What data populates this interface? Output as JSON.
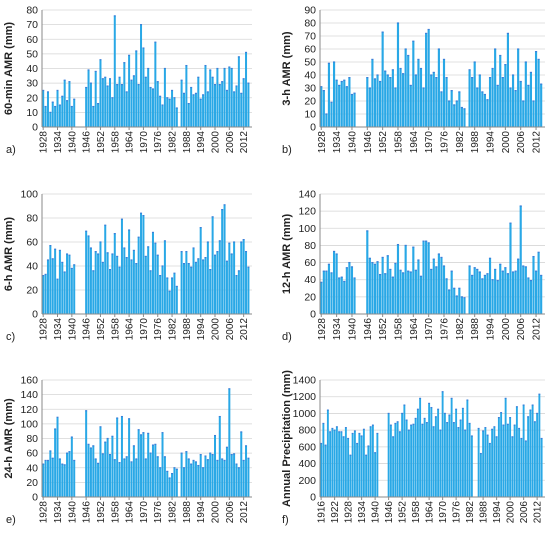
{
  "style": {
    "bar_color": "#29A8E6",
    "bar_edge_color": "#3B7FD9",
    "grid_color": "#d6d6d6",
    "axis_color": "#8a8a8a"
  },
  "chart_data": [
    {
      "panel": "a)",
      "type": "bar",
      "ylabel": "60-min AMR (mm)",
      "ylim": [
        0,
        80
      ],
      "yticks": [
        0,
        10,
        20,
        30,
        40,
        50,
        60,
        70,
        80
      ],
      "grid": true,
      "xrange": [
        1928,
        2015
      ],
      "xtick_labels": [
        "1928",
        "1934",
        "1940",
        "1946",
        "1952",
        "1958",
        "1964",
        "1970",
        "1976",
        "1982",
        "1988",
        "1994",
        "2000",
        "2006",
        "2012"
      ],
      "years": [
        1928,
        1929,
        1930,
        1931,
        1932,
        1933,
        1934,
        1935,
        1936,
        1937,
        1938,
        1939,
        1940,
        1941,
        1946,
        1947,
        1948,
        1949,
        1950,
        1951,
        1952,
        1953,
        1954,
        1955,
        1956,
        1957,
        1958,
        1959,
        1960,
        1961,
        1962,
        1963,
        1964,
        1965,
        1966,
        1967,
        1968,
        1969,
        1970,
        1971,
        1972,
        1973,
        1974,
        1975,
        1976,
        1977,
        1978,
        1979,
        1980,
        1981,
        1982,
        1983,
        1984,
        1986,
        1987,
        1988,
        1989,
        1990,
        1991,
        1992,
        1993,
        1994,
        1995,
        1996,
        1997,
        1998,
        1999,
        2000,
        2001,
        2002,
        2003,
        2004,
        2005,
        2006,
        2007,
        2008,
        2009,
        2010,
        2011,
        2012,
        2013,
        2014
      ],
      "values": [
        25,
        14,
        24,
        10,
        17,
        14,
        25,
        15,
        21,
        32,
        18,
        31,
        14,
        19,
        27,
        39,
        30,
        14,
        38,
        16,
        46,
        33,
        34,
        28,
        33,
        20,
        76,
        29,
        34,
        29,
        44,
        24,
        49,
        32,
        35,
        52,
        29,
        70,
        54,
        34,
        40,
        27,
        26,
        58,
        31,
        21,
        15,
        40,
        20,
        19,
        25,
        20,
        13,
        32,
        23,
        42,
        16,
        27,
        22,
        23,
        34,
        19,
        22,
        42,
        24,
        39,
        34,
        29,
        40,
        29,
        31,
        40,
        25,
        41,
        40,
        24,
        28,
        48,
        23,
        33,
        51,
        30
      ]
    },
    {
      "panel": "b)",
      "type": "bar",
      "ylabel": "3-h AMR (mm)",
      "ylim": [
        0,
        90
      ],
      "yticks": [
        0,
        10,
        20,
        30,
        40,
        50,
        60,
        70,
        80,
        90
      ],
      "grid": true,
      "xrange": [
        1928,
        2015
      ],
      "xtick_labels": [
        "1928",
        "1934",
        "1940",
        "1946",
        "1952",
        "1958",
        "1964",
        "1970",
        "1976",
        "1982",
        "1988",
        "1994",
        "2000",
        "2006",
        "2012"
      ],
      "years": [
        1928,
        1929,
        1930,
        1931,
        1932,
        1933,
        1934,
        1935,
        1936,
        1937,
        1938,
        1939,
        1940,
        1941,
        1946,
        1947,
        1948,
        1949,
        1950,
        1951,
        1952,
        1953,
        1954,
        1955,
        1956,
        1957,
        1958,
        1959,
        1960,
        1961,
        1962,
        1963,
        1964,
        1965,
        1966,
        1967,
        1968,
        1969,
        1970,
        1971,
        1972,
        1973,
        1974,
        1975,
        1976,
        1977,
        1978,
        1979,
        1980,
        1981,
        1982,
        1983,
        1984,
        1986,
        1987,
        1988,
        1989,
        1990,
        1991,
        1992,
        1993,
        1994,
        1995,
        1996,
        1997,
        1998,
        1999,
        2000,
        2001,
        2002,
        2003,
        2004,
        2005,
        2006,
        2007,
        2008,
        2009,
        2010,
        2011,
        2012,
        2013,
        2014
      ],
      "values": [
        31,
        28,
        10,
        49,
        19,
        50,
        36,
        32,
        35,
        36,
        31,
        38,
        25,
        26,
        38,
        30,
        52,
        37,
        40,
        35,
        73,
        43,
        40,
        38,
        44,
        30,
        80,
        45,
        41,
        60,
        55,
        32,
        66,
        40,
        52,
        45,
        30,
        72,
        75,
        40,
        42,
        38,
        60,
        27,
        52,
        38,
        20,
        28,
        17,
        20,
        27,
        15,
        14,
        44,
        38,
        50,
        30,
        40,
        27,
        25,
        21,
        38,
        45,
        60,
        32,
        55,
        38,
        48,
        72,
        30,
        40,
        28,
        60,
        35,
        20,
        50,
        32,
        42,
        20,
        58,
        52,
        33
      ]
    },
    {
      "panel": "c)",
      "type": "bar",
      "ylabel": "6-h AMR (mm)",
      "ylim": [
        0,
        100
      ],
      "yticks": [
        0,
        20,
        40,
        60,
        80,
        100
      ],
      "grid": true,
      "xrange": [
        1928,
        2015
      ],
      "xtick_labels": [
        "1928",
        "1934",
        "1940",
        "1946",
        "1952",
        "1958",
        "1964",
        "1970",
        "1976",
        "1982",
        "1988",
        "1994",
        "2000",
        "2006",
        "2012"
      ],
      "years": [
        1928,
        1929,
        1930,
        1931,
        1932,
        1933,
        1934,
        1935,
        1936,
        1937,
        1938,
        1939,
        1940,
        1941,
        1946,
        1947,
        1948,
        1949,
        1950,
        1951,
        1952,
        1953,
        1954,
        1955,
        1956,
        1957,
        1958,
        1959,
        1960,
        1961,
        1962,
        1963,
        1964,
        1965,
        1966,
        1967,
        1968,
        1969,
        1970,
        1971,
        1972,
        1973,
        1974,
        1975,
        1976,
        1977,
        1978,
        1979,
        1980,
        1981,
        1982,
        1983,
        1984,
        1986,
        1987,
        1988,
        1989,
        1990,
        1991,
        1992,
        1993,
        1994,
        1995,
        1996,
        1997,
        1998,
        1999,
        2000,
        2001,
        2002,
        2003,
        2004,
        2005,
        2006,
        2007,
        2008,
        2009,
        2010,
        2011,
        2012,
        2013,
        2014
      ],
      "values": [
        32,
        33,
        45,
        57,
        46,
        54,
        29,
        53,
        43,
        35,
        50,
        49,
        38,
        41,
        69,
        65,
        55,
        36,
        52,
        50,
        60,
        43,
        74,
        51,
        37,
        50,
        67,
        48,
        39,
        79,
        55,
        47,
        70,
        45,
        53,
        42,
        64,
        84,
        82,
        48,
        56,
        36,
        68,
        59,
        49,
        32,
        40,
        61,
        30,
        19,
        30,
        34,
        23,
        52,
        42,
        52,
        42,
        39,
        55,
        43,
        46,
        72,
        45,
        47,
        60,
        37,
        81,
        49,
        52,
        61,
        87,
        91,
        44,
        59,
        50,
        60,
        32,
        36,
        60,
        62,
        52,
        39
      ]
    },
    {
      "panel": "d)",
      "type": "bar",
      "ylabel": "12-h AMR (mm)",
      "ylim": [
        0,
        140
      ],
      "yticks": [
        0,
        20,
        40,
        60,
        80,
        100,
        120,
        140
      ],
      "grid": true,
      "xrange": [
        1928,
        2015
      ],
      "xtick_labels": [
        "1928",
        "1934",
        "1940",
        "1946",
        "1952",
        "1958",
        "1964",
        "1970",
        "1976",
        "1982",
        "1988",
        "1994",
        "2000",
        "2006",
        "2012"
      ],
      "years": [
        1928,
        1929,
        1930,
        1931,
        1932,
        1933,
        1934,
        1935,
        1936,
        1937,
        1938,
        1939,
        1940,
        1941,
        1946,
        1947,
        1948,
        1949,
        1950,
        1951,
        1952,
        1953,
        1954,
        1955,
        1956,
        1957,
        1958,
        1959,
        1960,
        1961,
        1962,
        1963,
        1964,
        1965,
        1966,
        1967,
        1968,
        1969,
        1970,
        1971,
        1972,
        1973,
        1974,
        1975,
        1976,
        1977,
        1978,
        1979,
        1980,
        1981,
        1982,
        1983,
        1984,
        1986,
        1987,
        1988,
        1989,
        1990,
        1991,
        1992,
        1993,
        1994,
        1995,
        1996,
        1997,
        1998,
        1999,
        2000,
        2001,
        2002,
        2003,
        2004,
        2005,
        2006,
        2007,
        2008,
        2009,
        2010,
        2011,
        2012,
        2013,
        2014
      ],
      "values": [
        37,
        50,
        50,
        58,
        48,
        73,
        70,
        42,
        43,
        38,
        54,
        60,
        55,
        42,
        97,
        65,
        60,
        58,
        61,
        46,
        66,
        47,
        68,
        52,
        43,
        59,
        81,
        51,
        48,
        80,
        50,
        49,
        78,
        51,
        63,
        44,
        85,
        85,
        83,
        52,
        64,
        55,
        70,
        66,
        56,
        41,
        28,
        50,
        30,
        21,
        30,
        20,
        19,
        56,
        45,
        54,
        52,
        49,
        41,
        45,
        47,
        65,
        40,
        52,
        39,
        58,
        50,
        54,
        47,
        106,
        49,
        50,
        64,
        126,
        56,
        55,
        42,
        39,
        67,
        50,
        72,
        45
      ]
    },
    {
      "panel": "e)",
      "type": "bar",
      "ylabel": "24-h AMR (mm)",
      "ylim": [
        0,
        160
      ],
      "yticks": [
        0,
        20,
        40,
        60,
        80,
        100,
        120,
        140,
        160
      ],
      "grid": true,
      "xrange": [
        1928,
        2015
      ],
      "xtick_labels": [
        "1928",
        "1934",
        "1940",
        "1946",
        "1952",
        "1958",
        "1964",
        "1970",
        "1976",
        "1982",
        "1988",
        "1994",
        "2000",
        "2006",
        "2012"
      ],
      "years": [
        1928,
        1929,
        1930,
        1931,
        1932,
        1933,
        1934,
        1935,
        1936,
        1937,
        1938,
        1939,
        1940,
        1941,
        1946,
        1947,
        1948,
        1949,
        1950,
        1951,
        1952,
        1953,
        1954,
        1955,
        1956,
        1957,
        1958,
        1959,
        1960,
        1961,
        1962,
        1963,
        1964,
        1965,
        1966,
        1967,
        1968,
        1969,
        1970,
        1971,
        1972,
        1973,
        1974,
        1975,
        1976,
        1977,
        1978,
        1979,
        1980,
        1981,
        1982,
        1983,
        1984,
        1986,
        1987,
        1988,
        1989,
        1990,
        1991,
        1992,
        1993,
        1994,
        1995,
        1996,
        1997,
        1998,
        1999,
        2000,
        2001,
        2002,
        2003,
        2004,
        2005,
        2006,
        2007,
        2008,
        2009,
        2010,
        2011,
        2012,
        2013,
        2014
      ],
      "values": [
        45,
        50,
        50,
        63,
        53,
        93,
        109,
        52,
        45,
        44,
        60,
        62,
        82,
        50,
        118,
        72,
        67,
        70,
        52,
        46,
        96,
        59,
        75,
        80,
        58,
        83,
        51,
        108,
        47,
        110,
        52,
        55,
        107,
        48,
        70,
        52,
        92,
        85,
        88,
        52,
        87,
        60,
        71,
        72,
        55,
        40,
        88,
        55,
        35,
        26,
        32,
        40,
        38,
        60,
        40,
        62,
        52,
        45,
        50,
        48,
        43,
        58,
        40,
        56,
        51,
        60,
        58,
        84,
        50,
        110,
        52,
        50,
        68,
        148,
        58,
        59,
        45,
        40,
        89,
        50,
        70,
        53
      ]
    },
    {
      "panel": "f)",
      "type": "bar",
      "ylabel": "Annual Precipitation (mm)",
      "ylim": [
        0,
        1400
      ],
      "yticks": [
        0,
        200,
        400,
        600,
        800,
        1000,
        1200,
        1400
      ],
      "grid": true,
      "xrange": [
        1916,
        2015
      ],
      "xtick_labels": [
        "1916",
        "1922",
        "1928",
        "1934",
        "1940",
        "1946",
        "1952",
        "1958",
        "1964",
        "1970",
        "1976",
        "1982",
        "1988",
        "1994",
        "2000",
        "2006",
        "2012"
      ],
      "years": [
        1916,
        1917,
        1918,
        1919,
        1920,
        1921,
        1922,
        1923,
        1924,
        1925,
        1926,
        1927,
        1928,
        1929,
        1930,
        1931,
        1932,
        1933,
        1934,
        1935,
        1936,
        1937,
        1938,
        1939,
        1940,
        1941,
        1946,
        1947,
        1948,
        1949,
        1950,
        1951,
        1952,
        1953,
        1954,
        1955,
        1956,
        1957,
        1958,
        1959,
        1960,
        1961,
        1962,
        1963,
        1964,
        1965,
        1966,
        1967,
        1968,
        1969,
        1970,
        1971,
        1972,
        1973,
        1974,
        1975,
        1976,
        1977,
        1978,
        1979,
        1980,
        1981,
        1982,
        1983,
        1986,
        1987,
        1988,
        1989,
        1990,
        1991,
        1992,
        1993,
        1994,
        1995,
        1996,
        1997,
        1998,
        1999,
        2000,
        2001,
        2002,
        2003,
        2004,
        2005,
        2006,
        2007,
        2008,
        2009,
        2010,
        2011,
        2012,
        2013,
        2014
      ],
      "values": [
        640,
        880,
        620,
        1040,
        780,
        820,
        800,
        840,
        780,
        780,
        720,
        830,
        700,
        500,
        760,
        790,
        640,
        760,
        730,
        810,
        500,
        610,
        840,
        860,
        530,
        760,
        1000,
        860,
        720,
        880,
        900,
        780,
        1000,
        1100,
        920,
        800,
        860,
        870,
        940,
        1050,
        1180,
        870,
        940,
        890,
        1120,
        1070,
        840,
        960,
        1050,
        800,
        1260,
        1000,
        890,
        980,
        1180,
        890,
        1050,
        830,
        920,
        1060,
        800,
        1160,
        880,
        730,
        820,
        520,
        790,
        830,
        740,
        640,
        810,
        840,
        720,
        950,
        1010,
        860,
        1180,
        870,
        950,
        720,
        860,
        1080,
        820,
        700,
        1100,
        670,
        960,
        1040,
        1100,
        900,
        1000,
        1230,
        700
      ]
    }
  ]
}
